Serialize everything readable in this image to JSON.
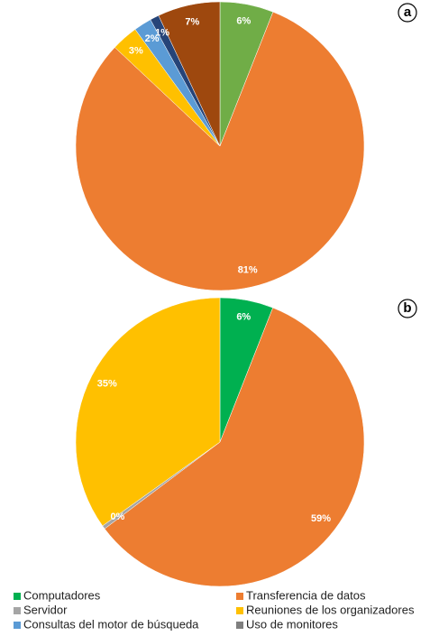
{
  "chart_data": [
    {
      "type": "pie",
      "panel": "a",
      "values": [
        6,
        81,
        3,
        2,
        1,
        7
      ],
      "value_labels": [
        "6%",
        "81%",
        "3%",
        "2%",
        "1%",
        "7%"
      ],
      "colors": [
        "#70ad47",
        "#ed7d31",
        "#ffc000",
        "#5b9bd5",
        "#264478",
        "#9e480e"
      ]
    },
    {
      "type": "pie",
      "panel": "b",
      "values": [
        6,
        59,
        0.4,
        35
      ],
      "value_labels": [
        "6%",
        "59%",
        "0%",
        "35%"
      ],
      "colors": [
        "#00b050",
        "#ed7d31",
        "#a5a5a5",
        "#ffc000"
      ]
    }
  ],
  "legend": [
    {
      "name": "Computadores",
      "color": "#00b050"
    },
    {
      "name": "Transferencia de datos",
      "color": "#ed7d31"
    },
    {
      "name": "Servidor",
      "color": "#a5a5a5"
    },
    {
      "name": "Reuniones de los organizadores",
      "color": "#ffc000"
    },
    {
      "name": "Consultas del motor de búsqueda",
      "color": "#5b9bd5"
    },
    {
      "name": "Uso de monitores",
      "color": "#7f7f7f"
    }
  ]
}
